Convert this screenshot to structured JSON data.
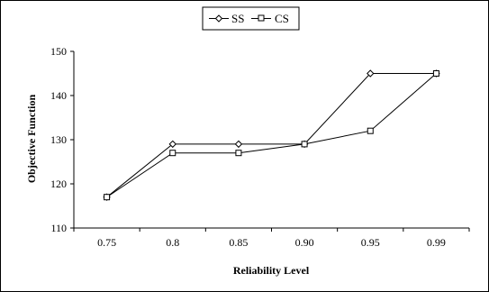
{
  "chart_data": {
    "type": "line",
    "categories": [
      "0.75",
      "0.8",
      "0.85",
      "0.90",
      "0.95",
      "0.99"
    ],
    "series": [
      {
        "name": "SS",
        "marker": "diamond",
        "values": [
          117,
          129,
          129,
          129,
          145,
          145
        ]
      },
      {
        "name": "CS",
        "marker": "square",
        "values": [
          117,
          127,
          127,
          129,
          132,
          145
        ]
      }
    ],
    "title": "",
    "xlabel": "Reliability Level",
    "ylabel": "Objective Function",
    "ylim": [
      110,
      150
    ],
    "yticks": [
      110,
      120,
      130,
      140,
      150
    ],
    "grid": false,
    "legend_position": "top-center",
    "line_color": "#000000"
  }
}
